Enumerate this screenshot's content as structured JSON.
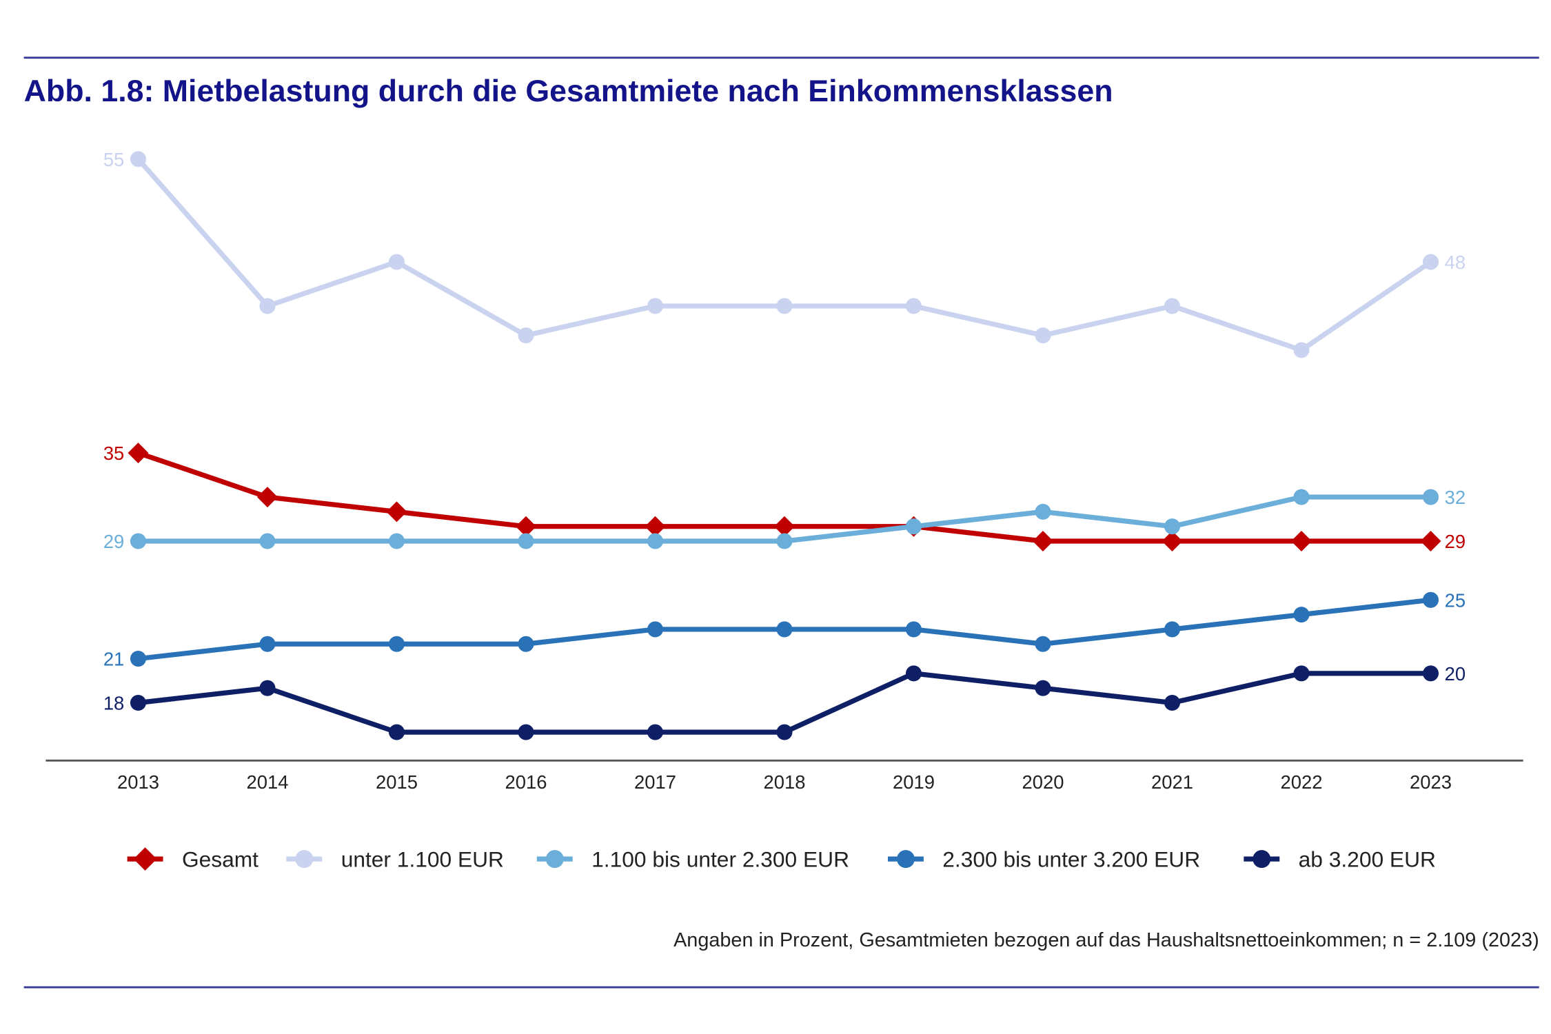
{
  "chart_data": {
    "type": "line",
    "title": "Abb. 1.8: Mietbelastung durch die Gesamtmiete nach Einkommensklassen",
    "note": "Angaben in Prozent, Gesamtmieten bezogen auf das Haushaltsnettoeinkommen; n = 2.109 (2023)",
    "x": [
      "2013",
      "2014",
      "2015",
      "2016",
      "2017",
      "2018",
      "2019",
      "2020",
      "2021",
      "2022",
      "2023"
    ],
    "xlabel": "",
    "ylabel": "",
    "ylim": [
      14,
      57
    ],
    "grid": false,
    "legend_placement": "bottom",
    "series": [
      {
        "name": "unter 1.100 EUR",
        "color": "#c9d3ef",
        "marker": "circle",
        "values": [
          55,
          45,
          48,
          43,
          45,
          45,
          45,
          43,
          45,
          42,
          48
        ],
        "start_label": "55",
        "end_label": "48"
      },
      {
        "name": "Gesamt",
        "color": "#c00000",
        "marker": "diamond",
        "values": [
          35,
          32,
          31,
          30,
          30,
          30,
          30,
          29,
          29,
          29,
          29
        ],
        "start_label": "35",
        "end_label": "29"
      },
      {
        "name": "1.100 bis unter 2.300 EUR",
        "color": "#6aaed9",
        "marker": "circle",
        "values": [
          29,
          29,
          29,
          29,
          29,
          29,
          30,
          31,
          30,
          32,
          32
        ],
        "start_label": "29",
        "end_label": "32"
      },
      {
        "name": "2.300 bis unter 3.200 EUR",
        "color": "#2a72b8",
        "marker": "circle",
        "values": [
          21,
          22,
          22,
          22,
          23,
          23,
          23,
          22,
          23,
          24,
          25
        ],
        "start_label": "21",
        "end_label": "25"
      },
      {
        "name": "ab 3.200 EUR",
        "color": "#0f1f66",
        "marker": "circle",
        "values": [
          18,
          19,
          16,
          16,
          16,
          16,
          20,
          19,
          18,
          20,
          20
        ],
        "start_label": "18",
        "end_label": "20"
      }
    ],
    "legend_order": [
      "Gesamt",
      "unter 1.100 EUR",
      "1.100 bis unter 2.300 EUR",
      "2.300 bis unter 3.200 EUR",
      "ab 3.200 EUR"
    ]
  },
  "colors": {
    "rule": "#3a3a9a",
    "title": "#14148a",
    "axis": "#555555"
  }
}
